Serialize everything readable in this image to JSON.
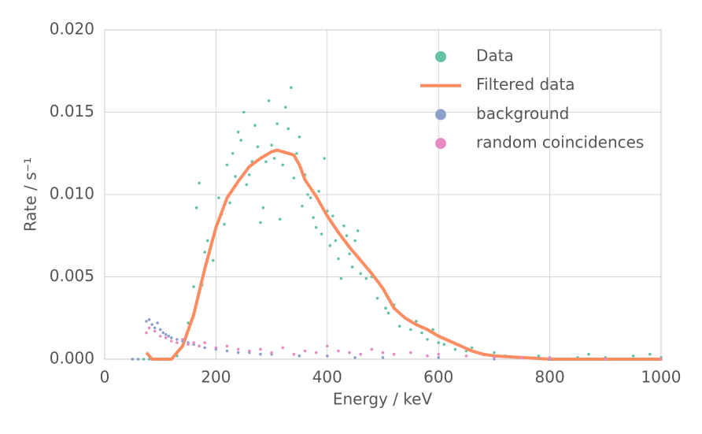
{
  "chart_data": {
    "type": "scatter",
    "xlabel": "Energy / keV",
    "ylabel": "Rate / s⁻¹",
    "xlim": [
      0,
      1000
    ],
    "ylim": [
      0,
      0.02
    ],
    "xticks": [
      0,
      200,
      400,
      600,
      800,
      1000
    ],
    "yticks": [
      {
        "value": 0,
        "label": "0.000"
      },
      {
        "value": 0.005,
        "label": "0.005"
      },
      {
        "value": 0.01,
        "label": "0.010"
      },
      {
        "value": 0.015,
        "label": "0.015"
      },
      {
        "value": 0.02,
        "label": "0.020"
      }
    ],
    "grid": true,
    "legend": "upper right",
    "series": [
      {
        "name": "Data",
        "type": "scatter",
        "color": "#66c2a5",
        "x": [
          50,
          60,
          70,
          80,
          90,
          100,
          110,
          120,
          130,
          140,
          150,
          160,
          165,
          170,
          175,
          180,
          185,
          190,
          195,
          200,
          205,
          210,
          215,
          220,
          225,
          230,
          235,
          240,
          245,
          250,
          255,
          260,
          265,
          270,
          275,
          280,
          285,
          290,
          295,
          300,
          305,
          310,
          315,
          320,
          325,
          330,
          335,
          340,
          345,
          350,
          355,
          360,
          365,
          370,
          375,
          380,
          385,
          390,
          395,
          400,
          405,
          410,
          415,
          420,
          425,
          430,
          435,
          440,
          445,
          450,
          455,
          460,
          470,
          480,
          490,
          500,
          505,
          510,
          520,
          530,
          540,
          550,
          560,
          570,
          580,
          590,
          600,
          610,
          620,
          630,
          640,
          650,
          660,
          680,
          700,
          720,
          750,
          780,
          800,
          850,
          870,
          900,
          950,
          980,
          1000
        ],
        "values": [
          0,
          0,
          0,
          0,
          0,
          0,
          0,
          0,
          0.0002,
          0.0008,
          0.0022,
          0.0044,
          0.0092,
          0.0107,
          0.0045,
          0.0065,
          0.0072,
          0.0068,
          0.006,
          0.0079,
          0.0098,
          0.0088,
          0.0082,
          0.0118,
          0.0095,
          0.0125,
          0.0111,
          0.0138,
          0.0133,
          0.015,
          0.0106,
          0.0112,
          0.012,
          0.0142,
          0.0129,
          0.0083,
          0.0092,
          0.012,
          0.0157,
          0.013,
          0.0122,
          0.0143,
          0.0085,
          0.0118,
          0.0153,
          0.014,
          0.0165,
          0.011,
          0.0125,
          0.0135,
          0.0093,
          0.0112,
          0.01,
          0.0098,
          0.0086,
          0.008,
          0.0102,
          0.0076,
          0.0122,
          0.009,
          0.0069,
          0.0087,
          0.0072,
          0.0061,
          0.0049,
          0.0081,
          0.0075,
          0.0064,
          0.0056,
          0.0072,
          0.0078,
          0.0052,
          0.0049,
          0.005,
          0.0037,
          0.0043,
          0.0031,
          0.0028,
          0.0033,
          0.002,
          0.0025,
          0.0018,
          0.0023,
          0.0016,
          0.0012,
          0.0018,
          0.001,
          0.0009,
          0.0011,
          0.0006,
          0.0008,
          0.0005,
          0.0007,
          0.0003,
          0.0004,
          0.0002,
          0.0001,
          0.0002,
          0.0001,
          0.0001,
          0.0003,
          0.0001,
          0.0002,
          0.0003,
          0.0001
        ]
      },
      {
        "name": "Filtered data",
        "type": "line",
        "color": "#fc8d62",
        "x": [
          75,
          85,
          120,
          140,
          160,
          180,
          200,
          220,
          240,
          260,
          280,
          300,
          310,
          320,
          340,
          350,
          360,
          380,
          400,
          420,
          440,
          460,
          480,
          500,
          520,
          540,
          560,
          580,
          600,
          620,
          640,
          660,
          680,
          700,
          750,
          800,
          900,
          1000
        ],
        "values": [
          0.0004,
          0,
          0,
          0.0008,
          0.0027,
          0.0055,
          0.008,
          0.0098,
          0.0108,
          0.0117,
          0.0122,
          0.0126,
          0.0127,
          0.0126,
          0.0124,
          0.0118,
          0.0109,
          0.0099,
          0.0087,
          0.0077,
          0.0068,
          0.006,
          0.0052,
          0.0043,
          0.0031,
          0.0025,
          0.0021,
          0.0018,
          0.0014,
          0.0011,
          0.0008,
          0.0005,
          0.0003,
          0.0002,
          0.0001,
          0,
          0,
          0
        ]
      },
      {
        "name": "background",
        "type": "scatter",
        "color": "#8da0cb",
        "x": [
          50,
          60,
          75,
          80,
          85,
          90,
          95,
          100,
          105,
          110,
          115,
          120,
          130,
          140,
          150,
          160,
          170,
          180,
          200,
          220,
          240,
          260,
          280,
          300,
          350,
          400,
          450,
          500,
          600,
          700,
          800,
          900,
          1000
        ],
        "values": [
          0,
          0,
          0.0023,
          0.0024,
          0.0021,
          0.0019,
          0.0022,
          0.0018,
          0.0016,
          0.0015,
          0.0014,
          0.0013,
          0.0012,
          0.0011,
          0.001,
          0.0009,
          0.0008,
          0.0007,
          0.0006,
          0.0005,
          0.0004,
          0.0004,
          0.0003,
          0.0003,
          0.0002,
          0.0002,
          0.0001,
          0.0001,
          0.0001,
          0,
          0,
          0,
          0
        ]
      },
      {
        "name": "random coincidences",
        "type": "scatter",
        "color": "#e78ac3",
        "x": [
          75,
          80,
          90,
          100,
          110,
          120,
          130,
          140,
          150,
          160,
          170,
          180,
          200,
          220,
          240,
          260,
          280,
          300,
          320,
          340,
          360,
          380,
          400,
          420,
          440,
          460,
          480,
          500,
          520,
          550,
          580,
          600,
          650,
          700,
          750,
          800,
          900,
          1000
        ],
        "values": [
          0.0016,
          0.0019,
          0.0017,
          0.0014,
          0.0013,
          0.0011,
          0.001,
          0.0012,
          0.0009,
          0.001,
          0.0008,
          0.001,
          0.0007,
          0.0008,
          0.0006,
          0.0005,
          0.0006,
          0.0004,
          0.0007,
          0.0003,
          0.0005,
          0.0004,
          0.0008,
          0.0005,
          0.0004,
          0.0003,
          0.0006,
          0.0004,
          0.0003,
          0.0004,
          0.0002,
          0.0003,
          0.0002,
          0.0001,
          0.0001,
          0.0001,
          0,
          0
        ]
      }
    ]
  }
}
